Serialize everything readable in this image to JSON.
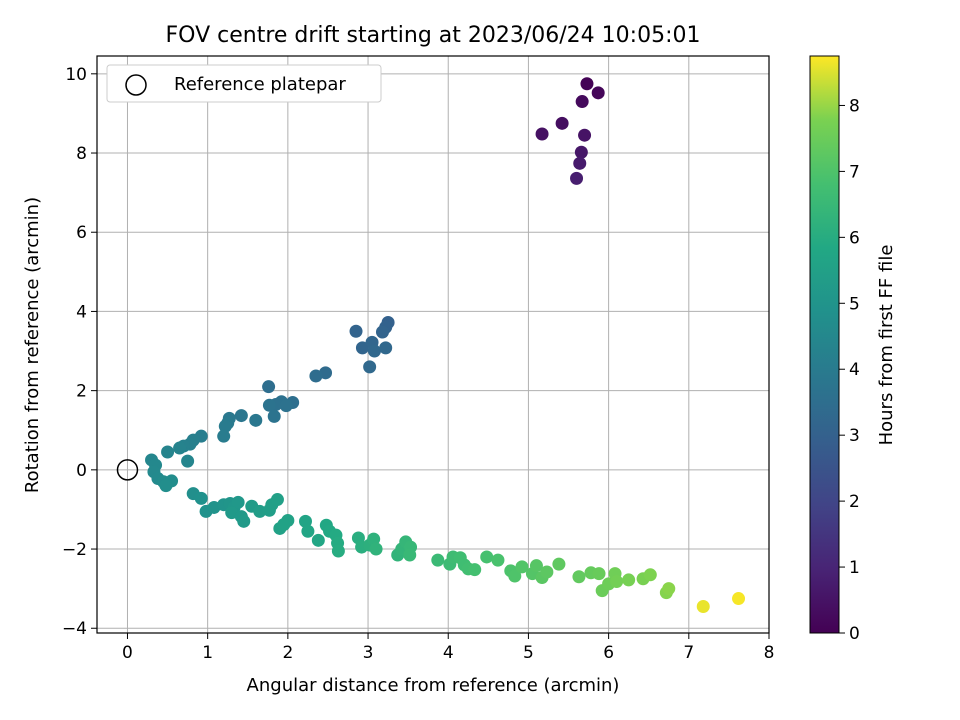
{
  "chart_data": {
    "type": "scatter",
    "title": "FOV centre drift starting at 2023/06/24 10:05:01",
    "xlabel": "Angular distance from reference (arcmin)",
    "ylabel": "Rotation from reference (arcmin)",
    "xlim": [
      -0.38,
      8.0
    ],
    "ylim": [
      -4.12,
      10.45
    ],
    "x_ticks": [
      0,
      1,
      2,
      3,
      4,
      5,
      6,
      7,
      8
    ],
    "y_ticks": [
      -4,
      -2,
      0,
      2,
      4,
      6,
      8,
      10
    ],
    "grid": true,
    "legend": {
      "placement": "top-left",
      "entries": [
        {
          "label": "Reference platepar",
          "marker": "open-circle"
        }
      ]
    },
    "reference_point": {
      "x": 0,
      "y": 0
    },
    "colorbar": {
      "label": "Hours from first FF file",
      "colormap": "viridis",
      "range": [
        0,
        8.75
      ],
      "ticks": [
        0,
        1,
        2,
        3,
        4,
        5,
        6,
        7,
        8
      ]
    },
    "points": [
      {
        "x": 5.73,
        "y": 9.75,
        "t": 0.05
      },
      {
        "x": 5.87,
        "y": 9.52,
        "t": 0.15
      },
      {
        "x": 5.67,
        "y": 9.3,
        "t": 0.25
      },
      {
        "x": 5.42,
        "y": 8.75,
        "t": 0.35
      },
      {
        "x": 5.17,
        "y": 8.48,
        "t": 0.45
      },
      {
        "x": 5.7,
        "y": 8.45,
        "t": 0.5
      },
      {
        "x": 5.66,
        "y": 8.02,
        "t": 0.6
      },
      {
        "x": 5.64,
        "y": 7.74,
        "t": 0.7
      },
      {
        "x": 5.6,
        "y": 7.36,
        "t": 0.8
      },
      {
        "x": 3.25,
        "y": 3.72,
        "t": 3.0
      },
      {
        "x": 3.22,
        "y": 3.6,
        "t": 3.05
      },
      {
        "x": 3.18,
        "y": 3.48,
        "t": 3.1
      },
      {
        "x": 2.85,
        "y": 3.5,
        "t": 3.1
      },
      {
        "x": 2.93,
        "y": 3.08,
        "t": 3.15
      },
      {
        "x": 3.05,
        "y": 3.22,
        "t": 3.2
      },
      {
        "x": 3.08,
        "y": 3.0,
        "t": 3.25
      },
      {
        "x": 3.22,
        "y": 3.08,
        "t": 3.25
      },
      {
        "x": 3.02,
        "y": 2.6,
        "t": 3.3
      },
      {
        "x": 2.47,
        "y": 2.45,
        "t": 3.4
      },
      {
        "x": 2.35,
        "y": 2.37,
        "t": 3.45
      },
      {
        "x": 1.76,
        "y": 2.1,
        "t": 3.5
      },
      {
        "x": 2.06,
        "y": 1.7,
        "t": 3.55
      },
      {
        "x": 1.92,
        "y": 1.72,
        "t": 3.6
      },
      {
        "x": 1.85,
        "y": 1.65,
        "t": 3.6
      },
      {
        "x": 1.98,
        "y": 1.62,
        "t": 3.65
      },
      {
        "x": 1.77,
        "y": 1.63,
        "t": 3.7
      },
      {
        "x": 1.83,
        "y": 1.35,
        "t": 3.7
      },
      {
        "x": 1.42,
        "y": 1.37,
        "t": 3.8
      },
      {
        "x": 1.6,
        "y": 1.25,
        "t": 3.85
      },
      {
        "x": 1.27,
        "y": 1.3,
        "t": 3.9
      },
      {
        "x": 1.25,
        "y": 1.18,
        "t": 3.95
      },
      {
        "x": 1.22,
        "y": 1.1,
        "t": 4.0
      },
      {
        "x": 1.2,
        "y": 0.85,
        "t": 4.05
      },
      {
        "x": 0.92,
        "y": 0.85,
        "t": 4.1
      },
      {
        "x": 0.82,
        "y": 0.75,
        "t": 4.15
      },
      {
        "x": 0.78,
        "y": 0.65,
        "t": 4.2
      },
      {
        "x": 0.7,
        "y": 0.6,
        "t": 4.25
      },
      {
        "x": 0.65,
        "y": 0.55,
        "t": 4.3
      },
      {
        "x": 0.5,
        "y": 0.45,
        "t": 4.35
      },
      {
        "x": 0.75,
        "y": 0.22,
        "t": 4.4
      },
      {
        "x": 0.3,
        "y": 0.25,
        "t": 4.45
      },
      {
        "x": 0.35,
        "y": 0.12,
        "t": 4.5
      },
      {
        "x": 0.33,
        "y": -0.05,
        "t": 4.55
      },
      {
        "x": 0.38,
        "y": -0.22,
        "t": 4.6
      },
      {
        "x": 0.45,
        "y": -0.3,
        "t": 4.65
      },
      {
        "x": 0.55,
        "y": -0.28,
        "t": 4.7
      },
      {
        "x": 0.48,
        "y": -0.4,
        "t": 4.75
      },
      {
        "x": 0.82,
        "y": -0.6,
        "t": 4.8
      },
      {
        "x": 0.92,
        "y": -0.72,
        "t": 4.85
      },
      {
        "x": 0.98,
        "y": -1.05,
        "t": 4.9
      },
      {
        "x": 1.08,
        "y": -0.95,
        "t": 4.95
      },
      {
        "x": 1.2,
        "y": -0.88,
        "t": 5.0
      },
      {
        "x": 1.28,
        "y": -0.85,
        "t": 5.05
      },
      {
        "x": 1.33,
        "y": -0.95,
        "t": 5.1
      },
      {
        "x": 1.38,
        "y": -0.82,
        "t": 5.15
      },
      {
        "x": 1.3,
        "y": -1.08,
        "t": 5.2
      },
      {
        "x": 1.42,
        "y": -1.18,
        "t": 5.2
      },
      {
        "x": 1.45,
        "y": -1.3,
        "t": 5.25
      },
      {
        "x": 1.55,
        "y": -0.92,
        "t": 5.3
      },
      {
        "x": 1.65,
        "y": -1.05,
        "t": 5.35
      },
      {
        "x": 1.77,
        "y": -1.02,
        "t": 5.4
      },
      {
        "x": 1.8,
        "y": -0.88,
        "t": 5.45
      },
      {
        "x": 1.87,
        "y": -0.75,
        "t": 5.5
      },
      {
        "x": 1.9,
        "y": -1.48,
        "t": 5.55
      },
      {
        "x": 1.95,
        "y": -1.38,
        "t": 5.6
      },
      {
        "x": 2.0,
        "y": -1.28,
        "t": 5.6
      },
      {
        "x": 2.22,
        "y": -1.3,
        "t": 5.65
      },
      {
        "x": 2.25,
        "y": -1.55,
        "t": 5.7
      },
      {
        "x": 2.38,
        "y": -1.78,
        "t": 5.75
      },
      {
        "x": 2.48,
        "y": -1.4,
        "t": 5.8
      },
      {
        "x": 2.52,
        "y": -1.55,
        "t": 5.85
      },
      {
        "x": 2.6,
        "y": -1.65,
        "t": 5.9
      },
      {
        "x": 2.62,
        "y": -1.85,
        "t": 5.95
      },
      {
        "x": 2.63,
        "y": -2.05,
        "t": 6.0
      },
      {
        "x": 2.88,
        "y": -1.72,
        "t": 6.05
      },
      {
        "x": 2.92,
        "y": -1.95,
        "t": 6.1
      },
      {
        "x": 3.02,
        "y": -1.9,
        "t": 6.15
      },
      {
        "x": 3.07,
        "y": -1.75,
        "t": 6.2
      },
      {
        "x": 3.1,
        "y": -2.0,
        "t": 6.25
      },
      {
        "x": 3.37,
        "y": -2.15,
        "t": 6.3
      },
      {
        "x": 3.42,
        "y": -2.0,
        "t": 6.35
      },
      {
        "x": 3.47,
        "y": -1.82,
        "t": 6.4
      },
      {
        "x": 3.53,
        "y": -1.95,
        "t": 6.45
      },
      {
        "x": 3.52,
        "y": -2.15,
        "t": 6.5
      },
      {
        "x": 3.87,
        "y": -2.28,
        "t": 6.55
      },
      {
        "x": 4.02,
        "y": -2.38,
        "t": 6.6
      },
      {
        "x": 4.06,
        "y": -2.2,
        "t": 6.65
      },
      {
        "x": 4.15,
        "y": -2.22,
        "t": 6.7
      },
      {
        "x": 4.2,
        "y": -2.4,
        "t": 6.7
      },
      {
        "x": 4.25,
        "y": -2.5,
        "t": 6.75
      },
      {
        "x": 4.33,
        "y": -2.52,
        "t": 6.8
      },
      {
        "x": 4.48,
        "y": -2.2,
        "t": 6.85
      },
      {
        "x": 4.62,
        "y": -2.28,
        "t": 6.9
      },
      {
        "x": 4.78,
        "y": -2.55,
        "t": 6.95
      },
      {
        "x": 4.83,
        "y": -2.68,
        "t": 7.0
      },
      {
        "x": 4.92,
        "y": -2.45,
        "t": 7.05
      },
      {
        "x": 5.05,
        "y": -2.62,
        "t": 7.1
      },
      {
        "x": 5.1,
        "y": -2.42,
        "t": 7.15
      },
      {
        "x": 5.17,
        "y": -2.72,
        "t": 7.2
      },
      {
        "x": 5.23,
        "y": -2.58,
        "t": 7.25
      },
      {
        "x": 5.38,
        "y": -2.38,
        "t": 7.3
      },
      {
        "x": 5.63,
        "y": -2.7,
        "t": 7.35
      },
      {
        "x": 5.78,
        "y": -2.6,
        "t": 7.4
      },
      {
        "x": 5.88,
        "y": -2.62,
        "t": 7.45
      },
      {
        "x": 5.92,
        "y": -3.05,
        "t": 7.5
      },
      {
        "x": 6.0,
        "y": -2.88,
        "t": 7.55
      },
      {
        "x": 6.08,
        "y": -2.62,
        "t": 7.6
      },
      {
        "x": 6.1,
        "y": -2.82,
        "t": 7.65
      },
      {
        "x": 6.25,
        "y": -2.78,
        "t": 7.7
      },
      {
        "x": 6.43,
        "y": -2.75,
        "t": 7.75
      },
      {
        "x": 6.52,
        "y": -2.65,
        "t": 7.8
      },
      {
        "x": 6.72,
        "y": -3.1,
        "t": 7.85
      },
      {
        "x": 6.75,
        "y": -3.0,
        "t": 7.9
      },
      {
        "x": 7.18,
        "y": -3.45,
        "t": 8.6
      },
      {
        "x": 7.62,
        "y": -3.25,
        "t": 8.7
      }
    ]
  }
}
